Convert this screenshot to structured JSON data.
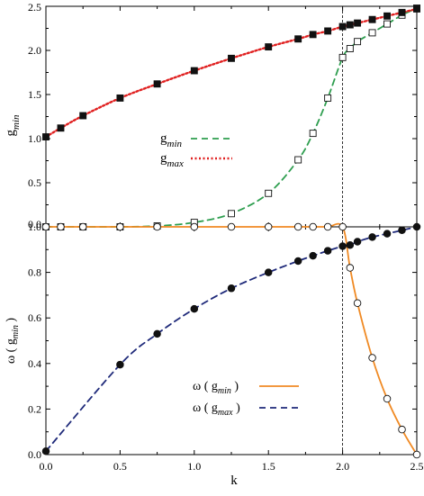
{
  "chart_data": [
    {
      "type": "line",
      "ylabel": "g",
      "ylabel_sub": "min",
      "xlim": [
        0,
        2.5
      ],
      "ylim": [
        0,
        2.5
      ],
      "yticks": [
        "0.0",
        "0.5",
        "1.0",
        "1.5",
        "2.0",
        "2.5"
      ],
      "reference_line_x": 2.0,
      "legend_placement": "center",
      "series": [
        {
          "name": "g",
          "name_sub": "min",
          "color": "#2e9e4f",
          "line_style": "dashed",
          "marker": "open-square",
          "x": [
            0.0,
            0.1,
            0.25,
            0.5,
            0.75,
            1.0,
            1.25,
            1.5,
            1.7,
            1.8,
            1.9,
            2.0,
            2.05,
            2.1,
            2.2,
            2.3,
            2.4,
            2.5
          ],
          "y": [
            0.0,
            0.0,
            0.0,
            0.0,
            0.01,
            0.05,
            0.15,
            0.38,
            0.76,
            1.06,
            1.46,
            1.92,
            2.02,
            2.1,
            2.2,
            2.3,
            2.4,
            2.48
          ]
        },
        {
          "name": "g",
          "name_sub": "max",
          "color": "#e02020",
          "line_style": "dotted",
          "marker": "filled-square",
          "x": [
            0.0,
            0.1,
            0.25,
            0.5,
            0.75,
            1.0,
            1.25,
            1.5,
            1.7,
            1.8,
            1.9,
            2.0,
            2.05,
            2.1,
            2.2,
            2.3,
            2.4,
            2.5
          ],
          "y": [
            1.02,
            1.12,
            1.26,
            1.46,
            1.62,
            1.77,
            1.91,
            2.04,
            2.13,
            2.18,
            2.22,
            2.27,
            2.29,
            2.31,
            2.35,
            2.39,
            2.43,
            2.47
          ]
        }
      ]
    },
    {
      "type": "line",
      "ylabel": "ω ( g",
      "ylabel_sub": "min",
      "ylabel_end": " )",
      "xlabel": "k",
      "xlim": [
        0,
        2.5
      ],
      "ylim": [
        0,
        1.0
      ],
      "xticks": [
        "0.0",
        "0.5",
        "1.0",
        "1.5",
        "2.0",
        "2.5"
      ],
      "yticks": [
        "0.0",
        "0.2",
        "0.4",
        "0.6",
        "0.8",
        "1.0"
      ],
      "reference_line_x": 2.0,
      "reference_line_y": 1.0,
      "legend_placement": "bottom-right",
      "series": [
        {
          "name": "ω ( g",
          "name_sub": "min",
          "name_end": " )",
          "color": "#f08a24",
          "line_style": "solid",
          "marker": "open-circle",
          "x": [
            0.0,
            0.1,
            0.25,
            0.5,
            0.75,
            1.0,
            1.25,
            1.5,
            1.7,
            1.8,
            1.9,
            2.0,
            2.05,
            2.1,
            2.2,
            2.3,
            2.4,
            2.5
          ],
          "y": [
            1.0,
            1.0,
            1.0,
            1.0,
            1.0,
            1.0,
            1.0,
            1.0,
            1.0,
            1.0,
            1.0,
            1.0,
            0.82,
            0.665,
            0.425,
            0.245,
            0.11,
            0.0
          ]
        },
        {
          "name": "ω ( g",
          "name_sub": "max",
          "name_end": " )",
          "color": "#1f2a7a",
          "line_style": "dashed",
          "marker": "filled-circle",
          "x": [
            0.0,
            0.5,
            0.75,
            1.0,
            1.25,
            1.5,
            1.7,
            1.8,
            1.9,
            2.0,
            2.05,
            2.1,
            2.2,
            2.3,
            2.4,
            2.5
          ],
          "y": [
            0.015,
            0.395,
            0.53,
            0.64,
            0.73,
            0.8,
            0.85,
            0.873,
            0.895,
            0.915,
            0.92,
            0.935,
            0.955,
            0.97,
            0.985,
            1.0
          ]
        }
      ]
    }
  ]
}
